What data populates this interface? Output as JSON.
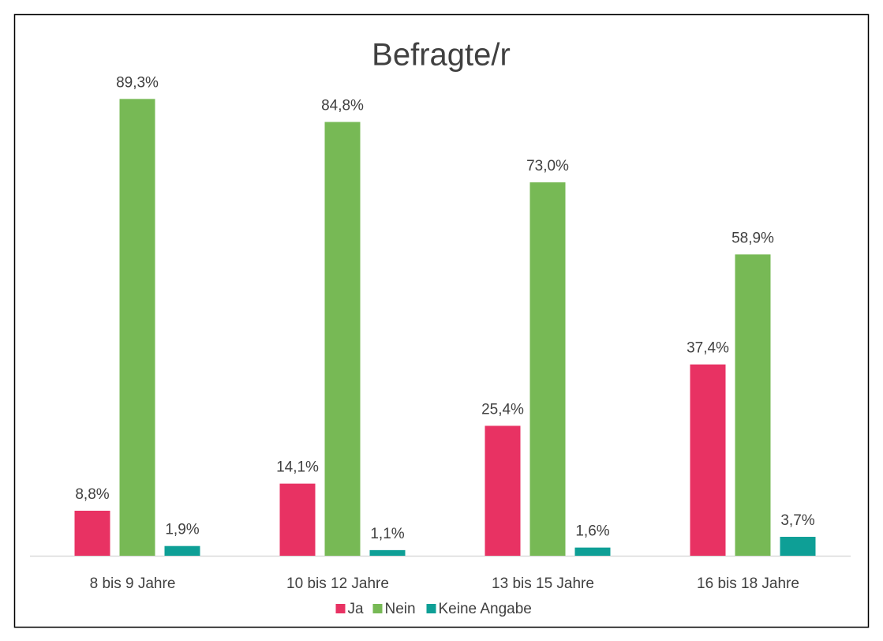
{
  "chart_data": {
    "type": "bar",
    "title": "Befragte/r",
    "categories": [
      "8 bis 9 Jahre",
      "10 bis 12 Jahre",
      "13 bis 15 Jahre",
      "16 bis 18 Jahre"
    ],
    "series": [
      {
        "name": "Ja",
        "color": "#e83263",
        "values": [
          8.8,
          14.1,
          25.4,
          37.4
        ],
        "value_labels": [
          "8,8%",
          "14,1%",
          "25,4%",
          "37,4%"
        ]
      },
      {
        "name": "Nein",
        "color": "#77b955",
        "values": [
          89.3,
          84.8,
          73.0,
          58.9
        ],
        "value_labels": [
          "89,3%",
          "84,8%",
          "73,0%",
          "58,9%"
        ]
      },
      {
        "name": "Keine Angabe",
        "color": "#0e9f96",
        "values": [
          1.9,
          1.1,
          1.6,
          3.7
        ],
        "value_labels": [
          "1,9%",
          "1,1%",
          "1,6%",
          "3,7%"
        ]
      }
    ],
    "ylim": [
      0,
      100
    ],
    "legend": "bottom"
  }
}
